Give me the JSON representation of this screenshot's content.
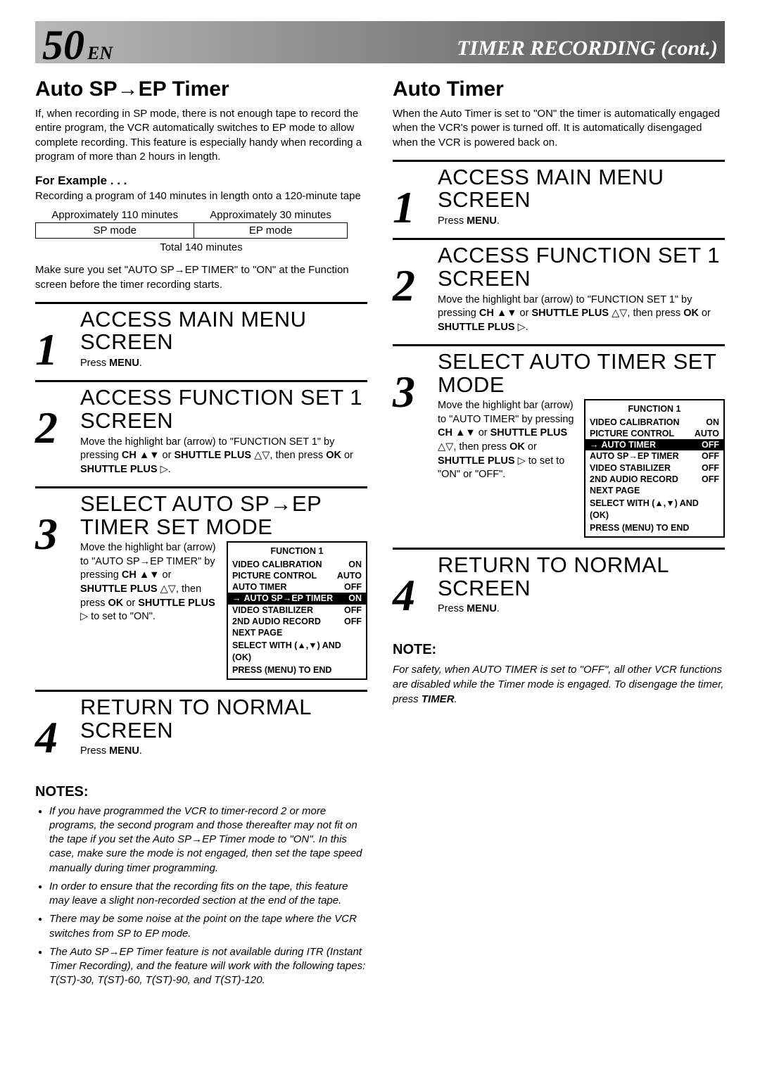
{
  "header": {
    "page_number": "50",
    "page_lang": "EN",
    "title": "TIMER RECORDING (cont.)"
  },
  "left": {
    "title": "Auto SP→EP Timer",
    "intro": "If, when recording in SP mode, there is not enough tape to record the entire program, the VCR automatically switches to EP mode to allow complete recording. This feature is especially handy when recording a program of more than 2 hours in length.",
    "example_title": "For Example . . .",
    "example_text": "Recording a program of 140 minutes in length onto a 120-minute tape",
    "table": {
      "h1": "Approximately 110 minutes",
      "h2": "Approximately 30 minutes",
      "c1": "SP mode",
      "c2": "EP mode",
      "total": "Total 140 minutes"
    },
    "makesure": "Make sure you set \"AUTO SP→EP TIMER\" to \"ON\" at the Function screen before the timer recording starts.",
    "steps": [
      {
        "num": "1",
        "title": "ACCESS MAIN MENU SCREEN",
        "text": "Press <b>MENU</b>."
      },
      {
        "num": "2",
        "title": "ACCESS FUNCTION SET 1 SCREEN",
        "text": "Move the highlight bar (arrow) to \"FUNCTION SET 1\" by pressing <b>CH</b> <span class='sym'>▲▼</span> or <b>SHUTTLE PLUS</b> <span class='sym'>△▽</span>, then press <b>OK</b> or <b>SHUTTLE PLUS</b> <span class='sym'>▷</span>."
      },
      {
        "num": "3",
        "title": "SELECT AUTO SP→EP TIMER SET MODE",
        "text": "Move the highlight bar (arrow) to \"AUTO SP→EP TIMER\" by pressing <b>CH</b> <span class='sym'>▲▼</span> or <b>SHUTTLE PLUS</b> <span class='sym'>△▽</span>, then press <b>OK</b> or <b>SHUTTLE PLUS</b> <span class='sym'>▷</span> to set to \"ON\"."
      },
      {
        "num": "4",
        "title": "RETURN TO NORMAL SCREEN",
        "text": "Press <b>MENU</b>."
      }
    ],
    "osd": {
      "title": "FUNCTION 1",
      "rows": [
        {
          "label": "VIDEO CALIBRATION",
          "val": "ON",
          "hl": false
        },
        {
          "label": "PICTURE CONTROL",
          "val": "AUTO",
          "hl": false
        },
        {
          "label": "AUTO TIMER",
          "val": "OFF",
          "hl": false
        },
        {
          "label": "AUTO SP→EP TIMER",
          "val": "ON",
          "hl": true
        },
        {
          "label": "VIDEO STABILIZER",
          "val": "OFF",
          "hl": false
        },
        {
          "label": "2ND AUDIO RECORD",
          "val": "OFF",
          "hl": false
        }
      ],
      "next": "NEXT PAGE",
      "foot1": "SELECT WITH (▲,▼) AND (OK)",
      "foot2": "PRESS (MENU) TO END"
    },
    "notes_title": "NOTES:",
    "notes": [
      "If you have programmed the VCR to timer-record 2 or more programs, the second program and those thereafter may not fit on the tape if you set the Auto SP→EP Timer mode to \"ON\". In this case, make sure the mode is not engaged, then set the tape speed manually during timer programming.",
      "In order to ensure that the recording fits on the tape, this feature may leave a slight non-recorded section at the end of the tape.",
      "There may be some noise at the point on the tape where the VCR switches from SP to EP mode.",
      "The Auto SP→EP Timer feature is not available during ITR (Instant Timer Recording), and the feature will work with the following tapes:  T(ST)-30, T(ST)-60, T(ST)-90, and T(ST)-120."
    ]
  },
  "right": {
    "title": "Auto Timer",
    "intro": "When the Auto Timer is set to \"ON\" the timer is automatically engaged when the VCR's power is turned off. It is automatically disengaged when the VCR is powered back on.",
    "steps": [
      {
        "num": "1",
        "title": "ACCESS MAIN MENU SCREEN",
        "text": "Press <b>MENU</b>."
      },
      {
        "num": "2",
        "title": "ACCESS FUNCTION SET 1 SCREEN",
        "text": "Move the highlight bar (arrow) to \"FUNCTION SET 1\" by pressing <b>CH</b> <span class='sym'>▲▼</span> or <b>SHUTTLE PLUS</b> <span class='sym'>△▽</span>, then press <b>OK</b> or <b>SHUTTLE PLUS</b> <span class='sym'>▷</span>."
      },
      {
        "num": "3",
        "title": "SELECT AUTO TIMER SET MODE",
        "text": "Move the highlight bar (arrow) to \"AUTO TIMER\" by pressing <b>CH</b> <span class='sym'>▲▼</span> or <b>SHUTTLE PLUS</b> <span class='sym'>△▽</span>, then press <b>OK</b> or <b>SHUTTLE PLUS</b> <span class='sym'>▷</span> to set to \"ON\" or \"OFF\"."
      },
      {
        "num": "4",
        "title": "RETURN TO NORMAL SCREEN",
        "text": "Press <b>MENU</b>."
      }
    ],
    "osd": {
      "title": "FUNCTION 1",
      "rows": [
        {
          "label": "VIDEO CALIBRATION",
          "val": "ON",
          "hl": false
        },
        {
          "label": "PICTURE CONTROL",
          "val": "AUTO",
          "hl": false
        },
        {
          "label": "AUTO TIMER",
          "val": "OFF",
          "hl": true
        },
        {
          "label": "AUTO SP→EP TIMER",
          "val": "OFF",
          "hl": false
        },
        {
          "label": "VIDEO STABILIZER",
          "val": "OFF",
          "hl": false
        },
        {
          "label": "2ND AUDIO RECORD",
          "val": "OFF",
          "hl": false
        }
      ],
      "next": "NEXT PAGE",
      "foot1": "SELECT WITH (▲,▼) AND (OK)",
      "foot2": "PRESS (MENU) TO END"
    },
    "note_title": "NOTE:",
    "note": "For safety, when AUTO TIMER is set to \"OFF\", all other VCR functions are disabled while the Timer mode is engaged. To disengage the timer, press <b>TIMER</b>."
  }
}
